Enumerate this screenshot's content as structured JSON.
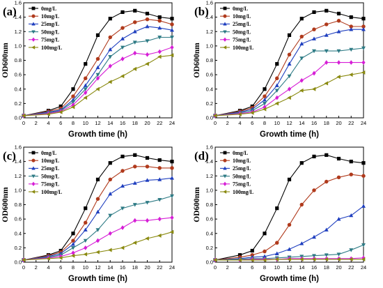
{
  "figure": {
    "styles": [
      {
        "color": "#000000",
        "marker": "square"
      },
      {
        "color": "#b03a1c",
        "marker": "circle"
      },
      {
        "color": "#1f3fbf",
        "marker": "triangle-up"
      },
      {
        "color": "#2e7b85",
        "marker": "triangle-down"
      },
      {
        "color": "#d61ed6",
        "marker": "diamond"
      },
      {
        "color": "#8a8a10",
        "marker": "triangle-left"
      }
    ]
  },
  "chart_data": [
    {
      "panel_label": "(a)",
      "type": "line",
      "xlabel": "Growth time (h)",
      "ylabel": "OD600nm",
      "xticks": [
        0,
        2,
        4,
        6,
        8,
        10,
        12,
        14,
        16,
        18,
        20,
        22,
        24
      ],
      "yticks": [
        "0.0",
        "0.2",
        "0.4",
        "0.6",
        "0.8",
        "1.0",
        "1.2",
        "1.4",
        "1.6"
      ],
      "xlim": [
        0,
        24
      ],
      "ylim": [
        0,
        1.6
      ],
      "legend_position": "top-left",
      "x": [
        0,
        4,
        6,
        8,
        10,
        12,
        14,
        16,
        18,
        20,
        22,
        24
      ],
      "series": [
        {
          "name": "0mg/L",
          "values": [
            0.03,
            0.1,
            0.16,
            0.4,
            0.75,
            1.15,
            1.38,
            1.47,
            1.49,
            1.45,
            1.4,
            1.38
          ]
        },
        {
          "name": "10mg/L",
          "values": [
            0.03,
            0.09,
            0.13,
            0.3,
            0.55,
            0.82,
            1.12,
            1.25,
            1.33,
            1.37,
            1.35,
            1.3
          ]
        },
        {
          "name": "25mg/L",
          "values": [
            0.03,
            0.08,
            0.11,
            0.25,
            0.45,
            0.7,
            0.95,
            1.1,
            1.2,
            1.27,
            1.25,
            1.22
          ]
        },
        {
          "name": "50mg/L",
          "values": [
            0.03,
            0.07,
            0.1,
            0.22,
            0.4,
            0.6,
            0.85,
            0.98,
            1.05,
            1.07,
            1.12,
            1.12
          ]
        },
        {
          "name": "75mg/L",
          "values": [
            0.03,
            0.06,
            0.09,
            0.18,
            0.35,
            0.55,
            0.72,
            0.82,
            0.9,
            0.88,
            0.92,
            0.98
          ]
        },
        {
          "name": "100mg/L",
          "values": [
            0.03,
            0.05,
            0.08,
            0.15,
            0.28,
            0.4,
            0.5,
            0.58,
            0.68,
            0.75,
            0.85,
            0.87
          ]
        }
      ]
    },
    {
      "panel_label": "(b)",
      "type": "line",
      "xlabel": "Growth time (h)",
      "ylabel": "OD600nm",
      "xticks": [
        0,
        2,
        4,
        6,
        8,
        10,
        12,
        14,
        16,
        18,
        20,
        22,
        24
      ],
      "yticks": [
        "0.0",
        "0.2",
        "0.4",
        "0.6",
        "0.8",
        "1.0",
        "1.2",
        "1.4",
        "1.6"
      ],
      "xlim": [
        0,
        24
      ],
      "ylim": [
        0,
        1.6
      ],
      "legend_position": "top-left",
      "x": [
        0,
        4,
        6,
        8,
        10,
        12,
        14,
        16,
        18,
        20,
        22,
        24
      ],
      "series": [
        {
          "name": "0mg/L",
          "values": [
            0.03,
            0.1,
            0.16,
            0.4,
            0.75,
            1.15,
            1.38,
            1.47,
            1.49,
            1.45,
            1.4,
            1.38
          ]
        },
        {
          "name": "10mg/L",
          "values": [
            0.03,
            0.09,
            0.14,
            0.3,
            0.55,
            0.88,
            1.13,
            1.23,
            1.3,
            1.35,
            1.27,
            1.27
          ]
        },
        {
          "name": "25mg/L",
          "values": [
            0.03,
            0.08,
            0.12,
            0.25,
            0.45,
            0.75,
            1.03,
            1.1,
            1.15,
            1.2,
            1.23,
            1.23
          ]
        },
        {
          "name": "50mg/L",
          "values": [
            0.03,
            0.07,
            0.1,
            0.2,
            0.38,
            0.58,
            0.83,
            0.93,
            0.93,
            0.93,
            0.95,
            0.97
          ]
        },
        {
          "name": "75mg/L",
          "values": [
            0.03,
            0.06,
            0.08,
            0.15,
            0.28,
            0.4,
            0.52,
            0.62,
            0.77,
            0.77,
            0.77,
            0.77
          ]
        },
        {
          "name": "100mg/L",
          "values": [
            0.03,
            0.05,
            0.07,
            0.12,
            0.2,
            0.28,
            0.38,
            0.4,
            0.48,
            0.57,
            0.6,
            0.63
          ]
        }
      ]
    },
    {
      "panel_label": "(c)",
      "type": "line",
      "xlabel": "Growth time (h)",
      "ylabel": "OD600nm",
      "xticks": [
        0,
        2,
        4,
        6,
        8,
        10,
        12,
        14,
        16,
        18,
        20,
        22,
        24
      ],
      "yticks": [
        "0.0",
        "0.2",
        "0.4",
        "0.6",
        "0.8",
        "1.0",
        "1.2",
        "1.4",
        "1.6"
      ],
      "xlim": [
        0,
        24
      ],
      "ylim": [
        0,
        1.6
      ],
      "legend_position": "top-left",
      "x": [
        0,
        4,
        6,
        8,
        10,
        12,
        14,
        16,
        18,
        20,
        22,
        24
      ],
      "series": [
        {
          "name": "0mg/L",
          "values": [
            0.03,
            0.1,
            0.16,
            0.4,
            0.75,
            1.15,
            1.38,
            1.47,
            1.49,
            1.45,
            1.42,
            1.4
          ]
        },
        {
          "name": "10mg/L",
          "values": [
            0.03,
            0.09,
            0.14,
            0.3,
            0.55,
            0.88,
            1.15,
            1.27,
            1.33,
            1.33,
            1.31,
            1.31
          ]
        },
        {
          "name": "25mg/L",
          "values": [
            0.03,
            0.08,
            0.12,
            0.25,
            0.45,
            0.7,
            0.95,
            1.06,
            1.1,
            1.14,
            1.15,
            1.17
          ]
        },
        {
          "name": "50mg/L",
          "values": [
            0.03,
            0.07,
            0.1,
            0.2,
            0.3,
            0.45,
            0.65,
            0.75,
            0.8,
            0.83,
            0.87,
            0.92
          ]
        },
        {
          "name": "75mg/L",
          "values": [
            0.03,
            0.06,
            0.08,
            0.13,
            0.2,
            0.3,
            0.4,
            0.48,
            0.58,
            0.58,
            0.6,
            0.62
          ]
        },
        {
          "name": "100mg/L",
          "values": [
            0.03,
            0.05,
            0.06,
            0.09,
            0.11,
            0.14,
            0.17,
            0.2,
            0.27,
            0.33,
            0.37,
            0.42
          ]
        }
      ]
    },
    {
      "panel_label": "(d)",
      "type": "line",
      "xlabel": "Growth time (h)",
      "ylabel": "OD600nm",
      "xticks": [
        0,
        2,
        4,
        6,
        8,
        10,
        12,
        14,
        16,
        18,
        20,
        22,
        24
      ],
      "yticks": [
        "0.0",
        "0.2",
        "0.4",
        "0.6",
        "0.8",
        "1.0",
        "1.2",
        "1.4",
        "1.6"
      ],
      "xlim": [
        0,
        24
      ],
      "ylim": [
        0,
        1.6
      ],
      "legend_position": "top-left",
      "x": [
        0,
        4,
        6,
        8,
        10,
        12,
        14,
        16,
        18,
        20,
        22,
        24
      ],
      "series": [
        {
          "name": "0mg/L",
          "values": [
            0.03,
            0.1,
            0.16,
            0.4,
            0.75,
            1.15,
            1.38,
            1.47,
            1.49,
            1.44,
            1.4,
            1.38
          ]
        },
        {
          "name": "10mg/L",
          "values": [
            0.03,
            0.07,
            0.1,
            0.15,
            0.27,
            0.52,
            0.8,
            1.0,
            1.12,
            1.18,
            1.22,
            1.2
          ]
        },
        {
          "name": "25mg/L",
          "values": [
            0.03,
            0.05,
            0.07,
            0.08,
            0.12,
            0.18,
            0.26,
            0.35,
            0.45,
            0.6,
            0.65,
            0.78
          ]
        },
        {
          "name": "50mg/L",
          "values": [
            0.03,
            0.04,
            0.05,
            0.05,
            0.06,
            0.07,
            0.08,
            0.09,
            0.1,
            0.11,
            0.17,
            0.24
          ]
        },
        {
          "name": "75mg/L",
          "values": [
            0.03,
            0.03,
            0.04,
            0.04,
            0.04,
            0.05,
            0.05,
            0.05,
            0.05,
            0.05,
            0.05,
            0.06
          ]
        },
        {
          "name": "100mg/L",
          "values": [
            0.03,
            0.03,
            0.03,
            0.03,
            0.04,
            0.04,
            0.04,
            0.04,
            0.04,
            0.04,
            0.04,
            0.04
          ]
        }
      ]
    }
  ]
}
